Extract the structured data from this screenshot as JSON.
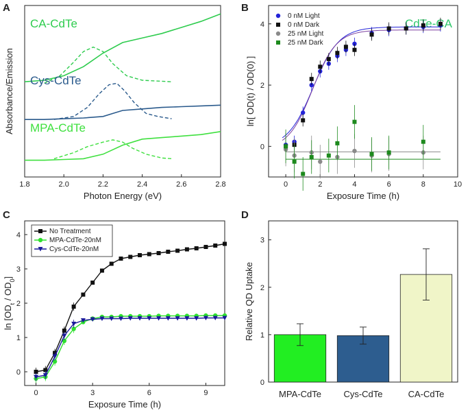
{
  "panels": {
    "A": "A",
    "B": "B",
    "C": "C",
    "D": "D"
  },
  "chart_data": [
    {
      "id": "A",
      "type": "line",
      "xlabel": "Photon Energy (eV)",
      "ylabel": "Absorbance/Emission",
      "xlim": [
        1.8,
        2.8
      ],
      "xticks": [
        "1.8",
        "2.0",
        "2.2",
        "2.4",
        "2.6",
        "2.8"
      ],
      "series": [
        {
          "name": "CA-CdTe",
          "color": "#2ecc4e",
          "label_color": "#2ecc4e",
          "absorbance": [
            [
              1.8,
              0.54
            ],
            [
              1.9,
              0.55
            ],
            [
              2.0,
              0.58
            ],
            [
              2.1,
              0.64
            ],
            [
              2.2,
              0.73
            ],
            [
              2.3,
              0.8
            ],
            [
              2.4,
              0.83
            ],
            [
              2.5,
              0.86
            ],
            [
              2.6,
              0.9
            ],
            [
              2.7,
              0.94
            ],
            [
              2.8,
              0.99
            ]
          ],
          "emission": [
            [
              1.9,
              0.53
            ],
            [
              1.98,
              0.58
            ],
            [
              2.05,
              0.67
            ],
            [
              2.1,
              0.74
            ],
            [
              2.15,
              0.77
            ],
            [
              2.2,
              0.74
            ],
            [
              2.25,
              0.66
            ],
            [
              2.32,
              0.58
            ],
            [
              2.4,
              0.55
            ],
            [
              2.55,
              0.54
            ]
          ]
        },
        {
          "name": "Cys-CdTe",
          "color": "#2a5a8c",
          "label_color": "#2a5a8c",
          "absorbance": [
            [
              1.8,
              0.29
            ],
            [
              1.9,
              0.29
            ],
            [
              2.0,
              0.295
            ],
            [
              2.1,
              0.3
            ],
            [
              2.2,
              0.31
            ],
            [
              2.25,
              0.33
            ],
            [
              2.3,
              0.35
            ],
            [
              2.4,
              0.36
            ],
            [
              2.5,
              0.37
            ],
            [
              2.6,
              0.375
            ],
            [
              2.7,
              0.38
            ],
            [
              2.8,
              0.385
            ]
          ],
          "emission": [
            [
              1.95,
              0.29
            ],
            [
              2.05,
              0.31
            ],
            [
              2.12,
              0.37
            ],
            [
              2.18,
              0.46
            ],
            [
              2.23,
              0.52
            ],
            [
              2.27,
              0.53
            ],
            [
              2.31,
              0.48
            ],
            [
              2.36,
              0.4
            ],
            [
              2.42,
              0.33
            ],
            [
              2.48,
              0.31
            ],
            [
              2.55,
              0.295
            ]
          ]
        },
        {
          "name": "MPA-CdTe",
          "color": "#3fe03f",
          "label_color": "#3fe03f",
          "absorbance": [
            [
              1.8,
              0.02
            ],
            [
              1.9,
              0.02
            ],
            [
              2.0,
              0.025
            ],
            [
              2.1,
              0.03
            ],
            [
              2.2,
              0.06
            ],
            [
              2.3,
              0.12
            ],
            [
              2.4,
              0.16
            ],
            [
              2.5,
              0.17
            ],
            [
              2.6,
              0.18
            ],
            [
              2.7,
              0.19
            ],
            [
              2.8,
              0.21
            ]
          ],
          "emission": [
            [
              1.95,
              0.03
            ],
            [
              2.05,
              0.07
            ],
            [
              2.12,
              0.11
            ],
            [
              2.2,
              0.14
            ],
            [
              2.25,
              0.155
            ],
            [
              2.3,
              0.14
            ],
            [
              2.35,
              0.1
            ],
            [
              2.42,
              0.06
            ],
            [
              2.5,
              0.035
            ],
            [
              2.55,
              0.03
            ]
          ]
        }
      ]
    },
    {
      "id": "B",
      "type": "scatter",
      "title": "CdTe-CA",
      "xlabel": "Exposure Time (h)",
      "ylabel": "ln[ OD(t) / OD(0) ]",
      "xlim": [
        -1,
        10
      ],
      "ylim": [
        -1,
        4.6
      ],
      "xticks": [
        0,
        2,
        4,
        6,
        8,
        10
      ],
      "yticks": [
        0,
        2,
        4
      ],
      "series": [
        {
          "name": "0 nM Light",
          "color": "#2323d8",
          "marker": "circle",
          "x": [
            0,
            0.5,
            1,
            1.5,
            2,
            2.5,
            3,
            3.5,
            4,
            5,
            6,
            7,
            8,
            9
          ],
          "y": [
            0.05,
            0.15,
            1.1,
            2.0,
            2.45,
            2.7,
            2.95,
            3.15,
            3.35,
            3.7,
            3.8,
            3.85,
            3.9,
            3.95
          ]
        },
        {
          "name": "0 nM Dark",
          "color": "#111111",
          "marker": "square",
          "x": [
            0,
            0.5,
            1,
            1.5,
            2,
            2.5,
            3,
            3.5,
            4,
            5,
            6,
            7,
            8,
            9
          ],
          "y": [
            0.0,
            0.05,
            0.85,
            2.2,
            2.6,
            2.85,
            3.05,
            3.25,
            3.15,
            3.65,
            3.85,
            3.85,
            3.95,
            4.0
          ]
        },
        {
          "name": "25 nM Light",
          "color": "#8a8a8a",
          "marker": "circle",
          "x": [
            0,
            0.5,
            1.5,
            2,
            3,
            4,
            5,
            6,
            8
          ],
          "y": [
            -0.1,
            -0.3,
            -0.2,
            -0.5,
            -0.35,
            -0.15,
            -0.3,
            -0.25,
            -0.2
          ]
        },
        {
          "name": "25 nM Dark",
          "color": "#1d8a1d",
          "marker": "square",
          "x": [
            0,
            0.5,
            1,
            1.5,
            2.5,
            3,
            4,
            5,
            6,
            8
          ],
          "y": [
            0.0,
            -0.5,
            -0.9,
            -0.35,
            -0.3,
            0.1,
            0.8,
            -0.25,
            -0.2,
            0.15
          ]
        }
      ],
      "fits": [
        {
          "name": "0 nM Light fit",
          "color": "#2323d8",
          "A1": -0.05,
          "A2": 3.9,
          "x0": 1.6,
          "dx": 0.75
        },
        {
          "name": "0 nM Dark fit",
          "color": "#7b3fa0",
          "A1": -0.1,
          "A2": 3.8,
          "x0": 1.55,
          "dx": 0.7
        },
        {
          "name": "25 nM Light fit",
          "color": "#8a8a8a",
          "flat": -0.18
        },
        {
          "name": "25 nM Dark fit",
          "color": "#1d8a1d",
          "flat": -0.42
        }
      ]
    },
    {
      "id": "C",
      "type": "line",
      "xlabel": "Exposure Time (h)",
      "ylabel": "ln [OD_t / OD_0]",
      "xlim": [
        -0.6,
        10
      ],
      "ylim": [
        -0.4,
        4.4
      ],
      "xticks": [
        0,
        3,
        6,
        9
      ],
      "yticks": [
        0,
        1,
        2,
        3,
        4
      ],
      "legend": [
        "No Treatment",
        "MPA-CdTe-20nM",
        "Cys-CdTe-20nM"
      ],
      "series": [
        {
          "name": "No Treatment",
          "color": "#111111",
          "marker": "square",
          "x": [
            0,
            0.5,
            1,
            1.5,
            2,
            2.5,
            3,
            3.5,
            4,
            4.5,
            5,
            5.5,
            6,
            6.5,
            7,
            7.5,
            8,
            8.5,
            9,
            9.5,
            10
          ],
          "y": [
            0.0,
            0.05,
            0.55,
            1.2,
            1.9,
            2.25,
            2.6,
            2.95,
            3.15,
            3.3,
            3.35,
            3.4,
            3.43,
            3.46,
            3.5,
            3.53,
            3.57,
            3.6,
            3.64,
            3.68,
            3.73
          ]
        },
        {
          "name": "MPA-CdTe-20nM",
          "color": "#2ee02e",
          "marker": "circle",
          "x": [
            0,
            0.5,
            1,
            1.5,
            2,
            2.5,
            3,
            3.5,
            4,
            4.5,
            5,
            5.5,
            6,
            6.5,
            7,
            7.5,
            8,
            8.5,
            9,
            9.5,
            10
          ],
          "y": [
            -0.2,
            -0.15,
            0.3,
            0.9,
            1.25,
            1.45,
            1.55,
            1.6,
            1.6,
            1.62,
            1.62,
            1.62,
            1.62,
            1.63,
            1.63,
            1.63,
            1.63,
            1.63,
            1.64,
            1.64,
            1.64
          ]
        },
        {
          "name": "Cys-CdTe-20nM",
          "color": "#1a1a9a",
          "marker": "triangle-down",
          "x": [
            0,
            0.5,
            1,
            1.5,
            2,
            2.5,
            3,
            3.5,
            4,
            4.5,
            5,
            5.5,
            6,
            6.5,
            7,
            7.5,
            8,
            8.5,
            9,
            9.5,
            10
          ],
          "y": [
            -0.15,
            -0.1,
            0.45,
            1.05,
            1.4,
            1.5,
            1.53,
            1.55,
            1.55,
            1.55,
            1.56,
            1.56,
            1.56,
            1.56,
            1.56,
            1.56,
            1.56,
            1.56,
            1.57,
            1.57,
            1.57
          ]
        }
      ]
    },
    {
      "id": "D",
      "type": "bar",
      "ylabel": "Relative  QD Uptake",
      "ylim": [
        0,
        3.4
      ],
      "yticks": [
        0,
        1,
        2,
        3
      ],
      "categories": [
        "MPA-CdTe",
        "Cys-CdTe",
        "CA-CdTe"
      ],
      "values": [
        1.0,
        0.98,
        2.27
      ],
      "errors": [
        0.23,
        0.18,
        0.54
      ],
      "colors": [
        "#22ee22",
        "#2d5d8f",
        "#f0f5c8"
      ]
    }
  ]
}
